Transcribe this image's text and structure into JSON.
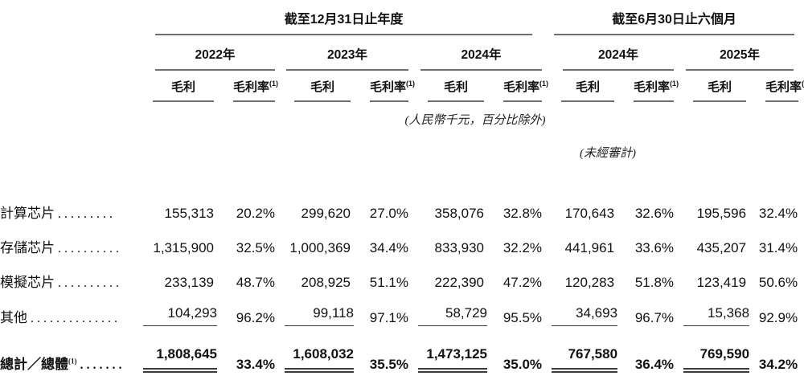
{
  "table": {
    "section_headers": {
      "annual": "截至12月31日止年度",
      "interim": "截至6月30日止六個月"
    },
    "year_headers": [
      "2022年",
      "2023年",
      "2024年",
      "2024年",
      "2025年"
    ],
    "col_headers": {
      "value": "毛利",
      "rate": "毛利率",
      "rate_sup": "(1)"
    },
    "notes": {
      "units": "(人民幣千元，百分比除外)",
      "unaudited": "(未經審計)"
    },
    "rows": [
      {
        "label": "計算芯片",
        "dots": ".........",
        "values": [
          "155,313",
          "20.2%",
          "299,620",
          "27.0%",
          "358,076",
          "32.8%",
          "170,643",
          "32.6%",
          "195,596",
          "32.4%"
        ]
      },
      {
        "label": "存儲芯片",
        "dots": "..........",
        "values": [
          "1,315,900",
          "32.5%",
          "1,000,369",
          "34.4%",
          "833,930",
          "32.2%",
          "441,961",
          "33.6%",
          "435,207",
          "31.4%"
        ]
      },
      {
        "label": "模擬芯片",
        "dots": "..........",
        "values": [
          "233,139",
          "48.7%",
          "208,925",
          "51.1%",
          "222,390",
          "47.2%",
          "120,283",
          "51.8%",
          "123,419",
          "50.6%"
        ]
      },
      {
        "label": "其他",
        "dots": "..............",
        "values": [
          "104,293",
          "96.2%",
          "99,118",
          "97.1%",
          "58,729",
          "95.5%",
          "34,693",
          "96.7%",
          "15,368",
          "92.9%"
        ]
      }
    ],
    "total_row": {
      "label": "總計／總體",
      "label_sup": "(1)",
      "dots": ".......",
      "values": [
        "1,808,645",
        "33.4%",
        "1,608,032",
        "35.5%",
        "1,473,125",
        "35.0%",
        "767,580",
        "36.4%",
        "769,590",
        "34.2%"
      ]
    }
  }
}
